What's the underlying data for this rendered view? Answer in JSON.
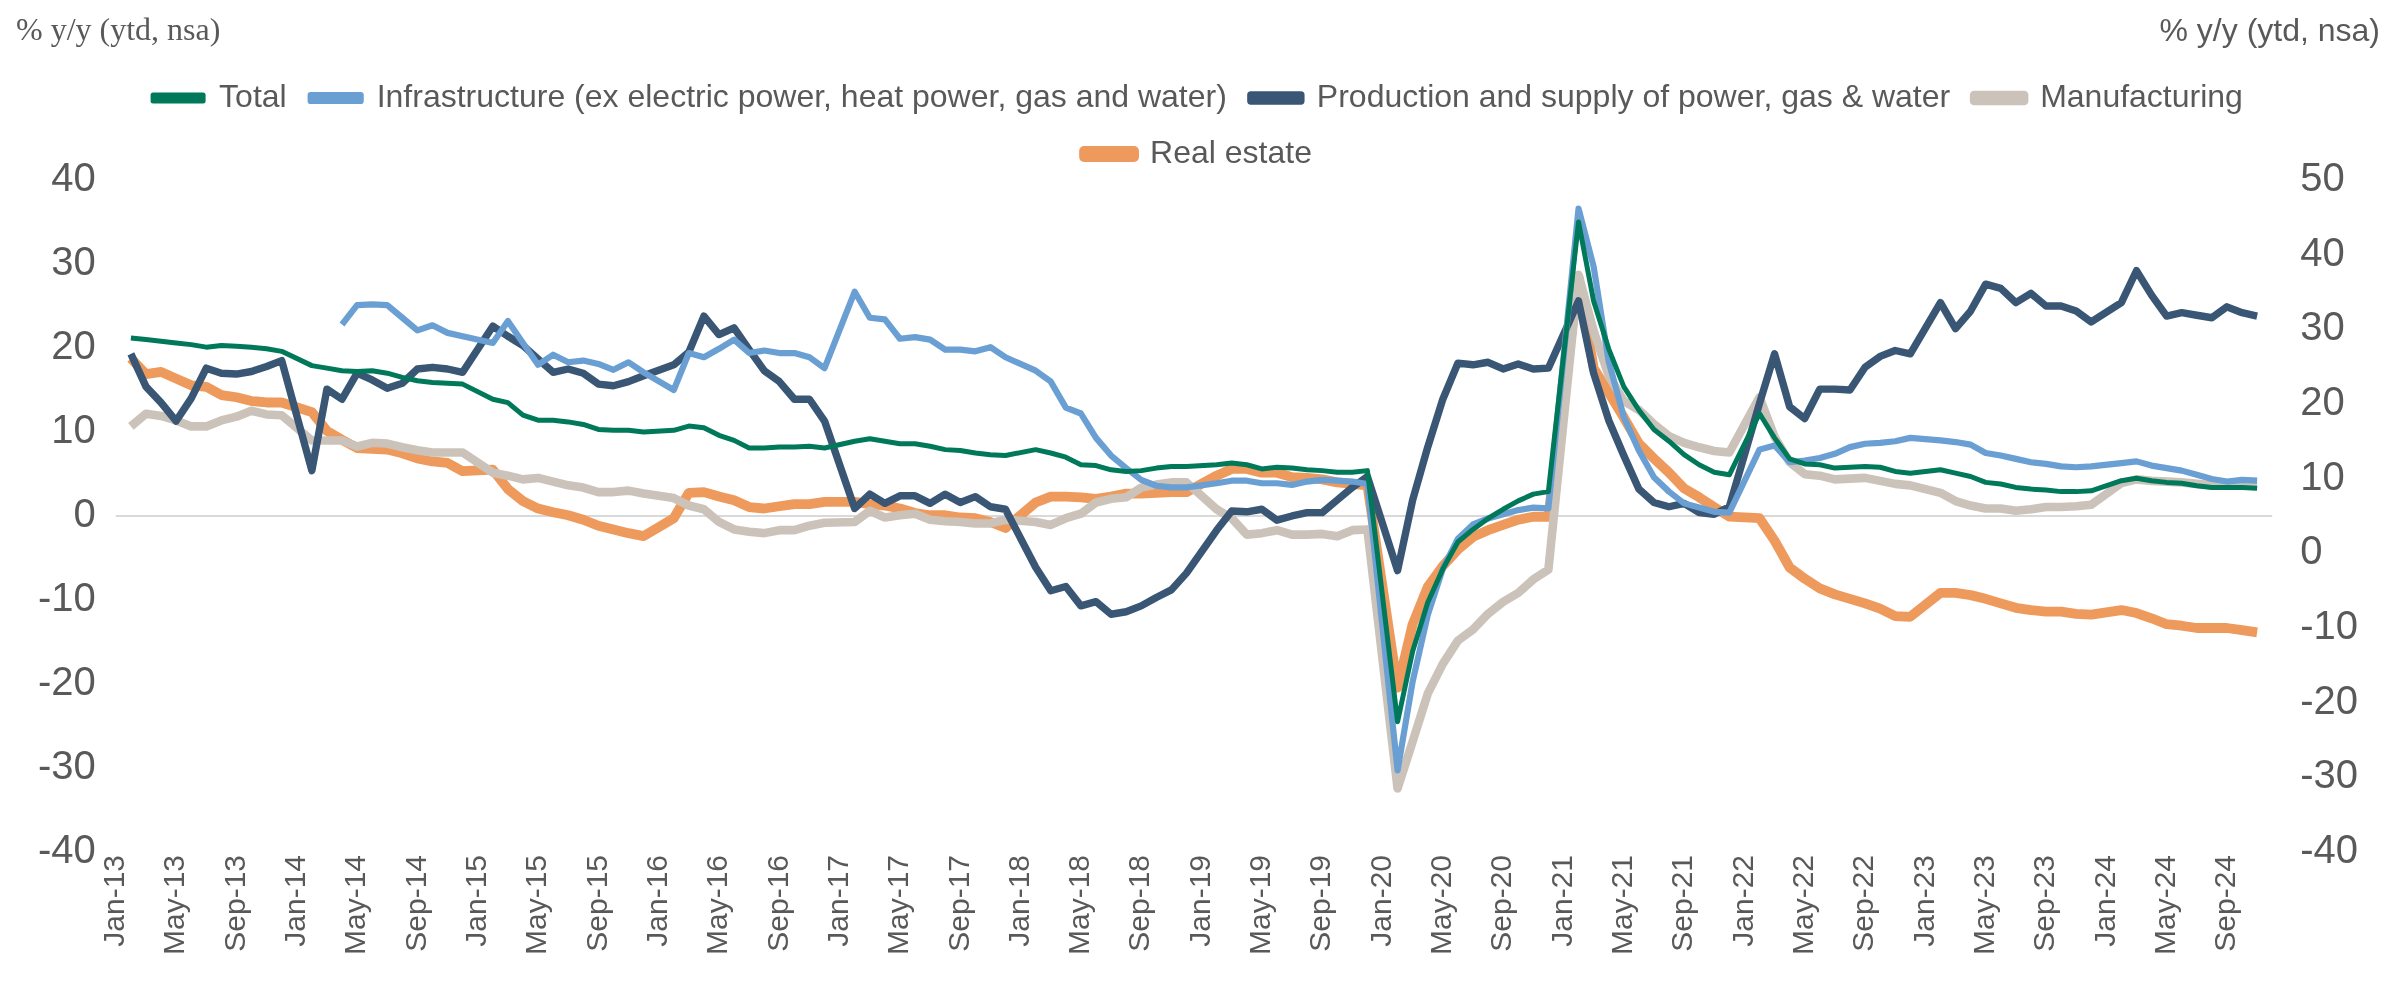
{
  "chart_data": {
    "type": "line",
    "ylabel": "% y/y (ytd, nsa)",
    "y2label": "% y/y (ytd, nsa)",
    "x": [
      "2013-02",
      "2013-03",
      "2013-04",
      "2013-05",
      "2013-06",
      "2013-07",
      "2013-08",
      "2013-09",
      "2013-10",
      "2013-11",
      "2013-12",
      "2014-02",
      "2014-03",
      "2014-04",
      "2014-05",
      "2014-06",
      "2014-07",
      "2014-08",
      "2014-09",
      "2014-10",
      "2014-11",
      "2014-12",
      "2015-02",
      "2015-03",
      "2015-04",
      "2015-05",
      "2015-06",
      "2015-07",
      "2015-08",
      "2015-09",
      "2015-10",
      "2015-11",
      "2015-12",
      "2016-02",
      "2016-03",
      "2016-04",
      "2016-05",
      "2016-06",
      "2016-07",
      "2016-08",
      "2016-09",
      "2016-10",
      "2016-11",
      "2016-12",
      "2017-02",
      "2017-03",
      "2017-04",
      "2017-05",
      "2017-06",
      "2017-07",
      "2017-08",
      "2017-09",
      "2017-10",
      "2017-11",
      "2017-12",
      "2018-02",
      "2018-03",
      "2018-04",
      "2018-05",
      "2018-06",
      "2018-07",
      "2018-08",
      "2018-09",
      "2018-10",
      "2018-11",
      "2018-12",
      "2019-02",
      "2019-03",
      "2019-04",
      "2019-05",
      "2019-06",
      "2019-07",
      "2019-08",
      "2019-09",
      "2019-10",
      "2019-11",
      "2019-12",
      "2020-02",
      "2020-03",
      "2020-04",
      "2020-05",
      "2020-06",
      "2020-07",
      "2020-08",
      "2020-09",
      "2020-10",
      "2020-11",
      "2020-12",
      "2021-02",
      "2021-03",
      "2021-04",
      "2021-05",
      "2021-06",
      "2021-07",
      "2021-08",
      "2021-09",
      "2021-10",
      "2021-11",
      "2021-12",
      "2022-02",
      "2022-03",
      "2022-04",
      "2022-05",
      "2022-06",
      "2022-07",
      "2022-08",
      "2022-09",
      "2022-10",
      "2022-11",
      "2022-12",
      "2023-02",
      "2023-03",
      "2023-04",
      "2023-05",
      "2023-06",
      "2023-07",
      "2023-08",
      "2023-09",
      "2023-10",
      "2023-11",
      "2023-12",
      "2024-02",
      "2024-03",
      "2024-04",
      "2024-05",
      "2024-06",
      "2024-07",
      "2024-08",
      "2024-09",
      "2024-10",
      "2024-11"
    ],
    "series": [
      {
        "name": "Total",
        "color": "#00785a",
        "values": [
          21.2,
          21.0,
          20.8,
          20.6,
          20.4,
          20.1,
          20.3,
          20.2,
          20.1,
          19.9,
          19.6,
          17.9,
          17.6,
          17.3,
          17.2,
          17.3,
          17.0,
          16.5,
          16.1,
          15.9,
          15.8,
          15.7,
          13.9,
          13.5,
          12.0,
          11.4,
          11.4,
          11.2,
          10.9,
          10.3,
          10.2,
          10.2,
          10.0,
          10.2,
          10.7,
          10.5,
          9.6,
          9.0,
          8.1,
          8.1,
          8.2,
          8.2,
          8.3,
          8.1,
          8.9,
          9.2,
          8.9,
          8.6,
          8.6,
          8.3,
          7.9,
          7.8,
          7.5,
          7.3,
          7.2,
          7.9,
          7.5,
          7.0,
          6.1,
          6.0,
          5.5,
          5.3,
          5.4,
          5.7,
          5.9,
          5.9,
          6.1,
          6.3,
          6.1,
          5.6,
          5.8,
          5.7,
          5.5,
          5.4,
          5.2,
          5.2,
          5.4,
          -24.5,
          -16.1,
          -10.3,
          -6.3,
          -3.1,
          -1.6,
          -0.3,
          0.8,
          1.8,
          2.6,
          2.9,
          35.0,
          25.6,
          19.9,
          15.4,
          12.6,
          10.3,
          8.9,
          7.3,
          6.1,
          5.2,
          4.9,
          12.2,
          9.3,
          6.8,
          6.2,
          6.1,
          5.7,
          5.8,
          5.9,
          5.8,
          5.3,
          5.1,
          5.5,
          5.1,
          4.7,
          4.0,
          3.8,
          3.4,
          3.2,
          3.1,
          2.9,
          2.9,
          3.0,
          4.2,
          4.5,
          4.2,
          4.0,
          3.9,
          3.6,
          3.4,
          3.4,
          3.4,
          3.3
        ]
      },
      {
        "name": "Infrastructure (ex electric power, heat power, gas and water)",
        "color": "#6a9fd4",
        "values": [
          null,
          null,
          null,
          null,
          null,
          null,
          null,
          null,
          null,
          null,
          null,
          null,
          null,
          22.8,
          25.1,
          25.2,
          25.1,
          23.6,
          22.1,
          22.7,
          21.8,
          21.4,
          20.6,
          23.2,
          20.6,
          18.0,
          19.2,
          18.3,
          18.5,
          18.1,
          17.4,
          18.3,
          17.1,
          15.0,
          19.4,
          18.9,
          19.9,
          21.0,
          19.4,
          19.7,
          19.4,
          19.4,
          18.9,
          17.6,
          26.7,
          23.6,
          23.4,
          21.1,
          21.3,
          21.0,
          19.8,
          19.8,
          19.6,
          20.1,
          18.9,
          17.3,
          16.0,
          12.9,
          12.2,
          9.3,
          7.2,
          5.7,
          4.3,
          3.6,
          3.4,
          3.4,
          3.9,
          4.2,
          4.2,
          3.9,
          3.9,
          3.7,
          4.1,
          4.3,
          4.2,
          4.1,
          3.8,
          -30.3,
          -19.7,
          -11.8,
          -6.3,
          -2.7,
          -1.0,
          -0.3,
          0.2,
          0.7,
          1.0,
          0.9,
          36.6,
          29.7,
          18.4,
          11.8,
          7.8,
          4.6,
          2.9,
          1.5,
          1.0,
          0.5,
          0.4,
          7.9,
          8.4,
          6.4,
          6.6,
          6.9,
          7.4,
          8.2,
          8.6,
          8.7,
          8.9,
          9.3,
          9.0,
          8.8,
          8.5,
          7.5,
          7.2,
          6.8,
          6.4,
          6.2,
          5.9,
          5.8,
          5.9,
          6.3,
          6.5,
          6.0,
          5.7,
          5.4,
          4.9,
          4.4,
          4.1,
          4.3,
          4.2
        ]
      },
      {
        "name": "Production and supply of power, gas & water",
        "color": "#3a5675",
        "values": [
          19.3,
          15.4,
          13.5,
          11.3,
          14.0,
          17.6,
          17.0,
          16.9,
          17.2,
          17.8,
          18.5,
          5.4,
          15.1,
          13.9,
          17.0,
          16.2,
          15.2,
          15.8,
          17.5,
          17.7,
          17.5,
          17.1,
          22.6,
          21.4,
          20.3,
          18.7,
          17.1,
          17.5,
          17.0,
          15.7,
          15.5,
          16.0,
          16.7,
          18.0,
          19.5,
          23.8,
          21.6,
          22.4,
          19.8,
          17.3,
          16.0,
          13.9,
          13.9,
          11.3,
          0.9,
          2.6,
          1.5,
          2.4,
          2.4,
          1.5,
          2.6,
          1.6,
          2.3,
          1.1,
          0.8,
          -6.1,
          -8.9,
          -8.4,
          -10.7,
          -10.2,
          -11.7,
          -11.4,
          -10.7,
          -9.7,
          -8.8,
          -6.8,
          -1.7,
          0.6,
          0.5,
          0.8,
          -0.5,
          0.0,
          0.4,
          0.4,
          1.9,
          3.4,
          4.7,
          -6.5,
          1.9,
          8.2,
          13.9,
          18.2,
          18.0,
          18.3,
          17.5,
          18.1,
          17.5,
          17.6,
          25.6,
          17.0,
          11.4,
          7.2,
          3.2,
          1.6,
          1.1,
          1.5,
          0.4,
          0.2,
          1.1,
          13.4,
          19.3,
          13.0,
          11.6,
          15.1,
          15.1,
          15.0,
          17.7,
          19.0,
          19.7,
          19.3,
          25.4,
          22.3,
          24.4,
          27.6,
          27.1,
          25.4,
          26.5,
          25.0,
          25.0,
          24.4,
          23.1,
          25.4,
          29.2,
          26.3,
          23.8,
          24.2,
          23.9,
          23.6,
          24.9,
          24.2,
          23.8
        ]
      },
      {
        "name": "Manufacturing",
        "color": "#cbc3ba",
        "axis": "y2",
        "values": [
          17.0,
          18.7,
          18.4,
          17.8,
          17.0,
          17.0,
          17.8,
          18.3,
          19.1,
          18.6,
          18.5,
          15.1,
          15.1,
          15.1,
          14.3,
          14.8,
          14.7,
          14.2,
          13.8,
          13.5,
          13.5,
          13.5,
          10.8,
          10.4,
          9.9,
          10.1,
          9.6,
          9.1,
          8.8,
          8.2,
          8.2,
          8.4,
          8.0,
          7.4,
          6.4,
          5.9,
          4.2,
          3.2,
          2.9,
          2.7,
          3.1,
          3.1,
          3.7,
          4.1,
          4.2,
          5.7,
          4.8,
          5.1,
          5.3,
          4.5,
          4.3,
          4.2,
          4.0,
          4.0,
          4.5,
          4.2,
          3.8,
          4.7,
          5.3,
          6.8,
          7.3,
          7.5,
          8.8,
          9.2,
          9.5,
          9.5,
          5.9,
          4.7,
          2.5,
          2.7,
          3.1,
          2.5,
          2.5,
          2.6,
          2.3,
          3.1,
          3.2,
          -31.5,
          -25.2,
          -18.8,
          -14.8,
          -11.7,
          -10.2,
          -8.1,
          -6.5,
          -5.3,
          -3.5,
          -2.2,
          37.3,
          29.8,
          23.8,
          20.4,
          19.2,
          17.3,
          15.7,
          14.8,
          14.2,
          13.7,
          13.5,
          20.9,
          15.6,
          12.2,
          10.6,
          10.4,
          9.9,
          10.0,
          10.1,
          9.7,
          9.3,
          9.1,
          8.1,
          7.0,
          6.4,
          6.0,
          6.0,
          5.7,
          5.9,
          6.2,
          6.2,
          6.3,
          6.5,
          9.4,
          9.9,
          9.7,
          9.6,
          9.5,
          9.3,
          9.1,
          9.2,
          9.3,
          9.3
        ]
      },
      {
        "name": "Real estate",
        "color": "#ee9a5d",
        "axis": "y2",
        "values": [
          26.1,
          24.0,
          24.3,
          23.4,
          22.5,
          22.3,
          21.2,
          20.9,
          20.4,
          20.2,
          20.2,
          18.9,
          16.4,
          15.2,
          14.1,
          14.0,
          13.9,
          13.4,
          12.7,
          12.3,
          12.1,
          11.0,
          11.2,
          8.6,
          7.0,
          6.0,
          5.5,
          5.1,
          4.5,
          3.7,
          3.2,
          2.7,
          2.3,
          4.7,
          8.1,
          8.2,
          7.6,
          7.1,
          6.2,
          6.0,
          6.3,
          6.6,
          6.6,
          6.9,
          6.9,
          6.6,
          6.4,
          6.0,
          5.4,
          5.1,
          5.1,
          4.8,
          4.7,
          4.2,
          3.4,
          6.8,
          7.6,
          7.6,
          7.5,
          7.3,
          7.6,
          8.0,
          8.0,
          8.1,
          8.2,
          8.2,
          10.4,
          11.3,
          11.3,
          10.8,
          10.8,
          10.2,
          10.1,
          9.9,
          9.5,
          9.3,
          9.1,
          -18.0,
          -9.5,
          -4.5,
          -1.7,
          0.5,
          2.2,
          3.1,
          3.8,
          4.5,
          4.9,
          4.9,
          37.0,
          24.8,
          21.5,
          18.2,
          14.7,
          12.7,
          10.8,
          8.7,
          7.5,
          6.2,
          4.9,
          4.7,
          1.7,
          -1.9,
          -3.4,
          -4.7,
          -5.5,
          -6.1,
          -6.7,
          -7.4,
          -8.4,
          -8.5,
          -5.3,
          -5.3,
          -5.6,
          -6.1,
          -6.7,
          -7.3,
          -7.6,
          -7.8,
          -7.8,
          -8.1,
          -8.2,
          -7.6,
          -8.0,
          -8.7,
          -9.5,
          -9.7,
          -10.0,
          -10.0,
          -10.0,
          -10.3,
          -10.6
        ]
      }
    ],
    "xlim": [
      "2013-01",
      "2024-12"
    ],
    "xticks": [
      {
        "value": "2013-01",
        "label": "Jan-13"
      },
      {
        "value": "2013-05",
        "label": "May-13"
      },
      {
        "value": "2013-09",
        "label": "Sep-13"
      },
      {
        "value": "2014-01",
        "label": "Jan-14"
      },
      {
        "value": "2014-05",
        "label": "May-14"
      },
      {
        "value": "2014-09",
        "label": "Sep-14"
      },
      {
        "value": "2015-01",
        "label": "Jan-15"
      },
      {
        "value": "2015-05",
        "label": "May-15"
      },
      {
        "value": "2015-09",
        "label": "Sep-15"
      },
      {
        "value": "2016-01",
        "label": "Jan-16"
      },
      {
        "value": "2016-05",
        "label": "May-16"
      },
      {
        "value": "2016-09",
        "label": "Sep-16"
      },
      {
        "value": "2017-01",
        "label": "Jan-17"
      },
      {
        "value": "2017-05",
        "label": "May-17"
      },
      {
        "value": "2017-09",
        "label": "Sep-17"
      },
      {
        "value": "2018-01",
        "label": "Jan-18"
      },
      {
        "value": "2018-05",
        "label": "May-18"
      },
      {
        "value": "2018-09",
        "label": "Sep-18"
      },
      {
        "value": "2019-01",
        "label": "Jan-19"
      },
      {
        "value": "2019-05",
        "label": "May-19"
      },
      {
        "value": "2019-09",
        "label": "Sep-19"
      },
      {
        "value": "2020-01",
        "label": "Jan-20"
      },
      {
        "value": "2020-05",
        "label": "May-20"
      },
      {
        "value": "2020-09",
        "label": "Sep-20"
      },
      {
        "value": "2021-01",
        "label": "Jan-21"
      },
      {
        "value": "2021-05",
        "label": "May-21"
      },
      {
        "value": "2021-09",
        "label": "Sep-21"
      },
      {
        "value": "2022-01",
        "label": "Jan-22"
      },
      {
        "value": "2022-05",
        "label": "May-22"
      },
      {
        "value": "2022-09",
        "label": "Sep-22"
      },
      {
        "value": "2023-01",
        "label": "Jan-23"
      },
      {
        "value": "2023-05",
        "label": "May-23"
      },
      {
        "value": "2023-09",
        "label": "Sep-23"
      },
      {
        "value": "2024-01",
        "label": "Jan-24"
      },
      {
        "value": "2024-05",
        "label": "May-24"
      },
      {
        "value": "2024-09",
        "label": "Sep-24"
      }
    ],
    "ylim": [
      -40,
      40
    ],
    "yticks": [
      -40,
      -30,
      -20,
      -10,
      0,
      10,
      20,
      30,
      40
    ],
    "y2lim": [
      -40,
      50
    ],
    "y2ticks": [
      -40,
      -30,
      -20,
      -10,
      0,
      10,
      20,
      30,
      40,
      50
    ],
    "ref_lines": [
      {
        "axis": "y",
        "value": 0,
        "color": "#d9d9d9"
      }
    ],
    "grid": false,
    "legend": "top",
    "marker": "none",
    "line_style": "solid"
  }
}
